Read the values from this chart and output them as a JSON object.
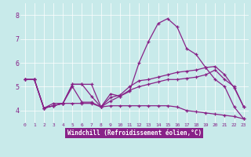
{
  "title": "",
  "xlabel": "Windchill (Refroidissement éolien,°C)",
  "ylabel": "",
  "background_color": "#c8eaea",
  "line_color": "#882288",
  "xlim": [
    -0.5,
    23.5
  ],
  "ylim": [
    3.5,
    8.5
  ],
  "yticks": [
    4,
    5,
    6,
    7,
    8
  ],
  "xticks": [
    0,
    1,
    2,
    3,
    4,
    5,
    6,
    7,
    8,
    9,
    10,
    11,
    12,
    13,
    14,
    15,
    16,
    17,
    18,
    19,
    20,
    21,
    22,
    23
  ],
  "xlabel_bg": "#882288",
  "xlabel_fg": "#ffffff",
  "series": [
    [
      5.3,
      5.3,
      4.1,
      4.2,
      4.3,
      5.1,
      5.1,
      5.1,
      4.15,
      4.7,
      4.6,
      4.8,
      6.0,
      6.9,
      7.65,
      7.85,
      7.5,
      6.6,
      6.35,
      5.8,
      5.3,
      5.0,
      4.15,
      3.65
    ],
    [
      5.3,
      5.3,
      4.1,
      4.2,
      4.3,
      5.1,
      5.1,
      4.6,
      4.15,
      4.4,
      4.6,
      4.85,
      5.0,
      5.1,
      5.2,
      5.3,
      5.3,
      5.35,
      5.4,
      5.5,
      5.7,
      5.3,
      5.0,
      4.15
    ],
    [
      5.3,
      5.3,
      4.1,
      4.2,
      4.3,
      4.3,
      4.3,
      4.3,
      4.15,
      4.2,
      4.2,
      4.2,
      4.2,
      4.2,
      4.2,
      4.2,
      4.15,
      4.0,
      3.95,
      3.9,
      3.85,
      3.8,
      3.75,
      3.65
    ],
    [
      5.3,
      5.3,
      4.1,
      4.3,
      4.3,
      5.0,
      4.35,
      4.35,
      4.15,
      4.55,
      4.65,
      5.0,
      5.25,
      5.3,
      5.4,
      5.5,
      5.6,
      5.65,
      5.7,
      5.8,
      5.85,
      5.5,
      4.95,
      4.15
    ]
  ]
}
